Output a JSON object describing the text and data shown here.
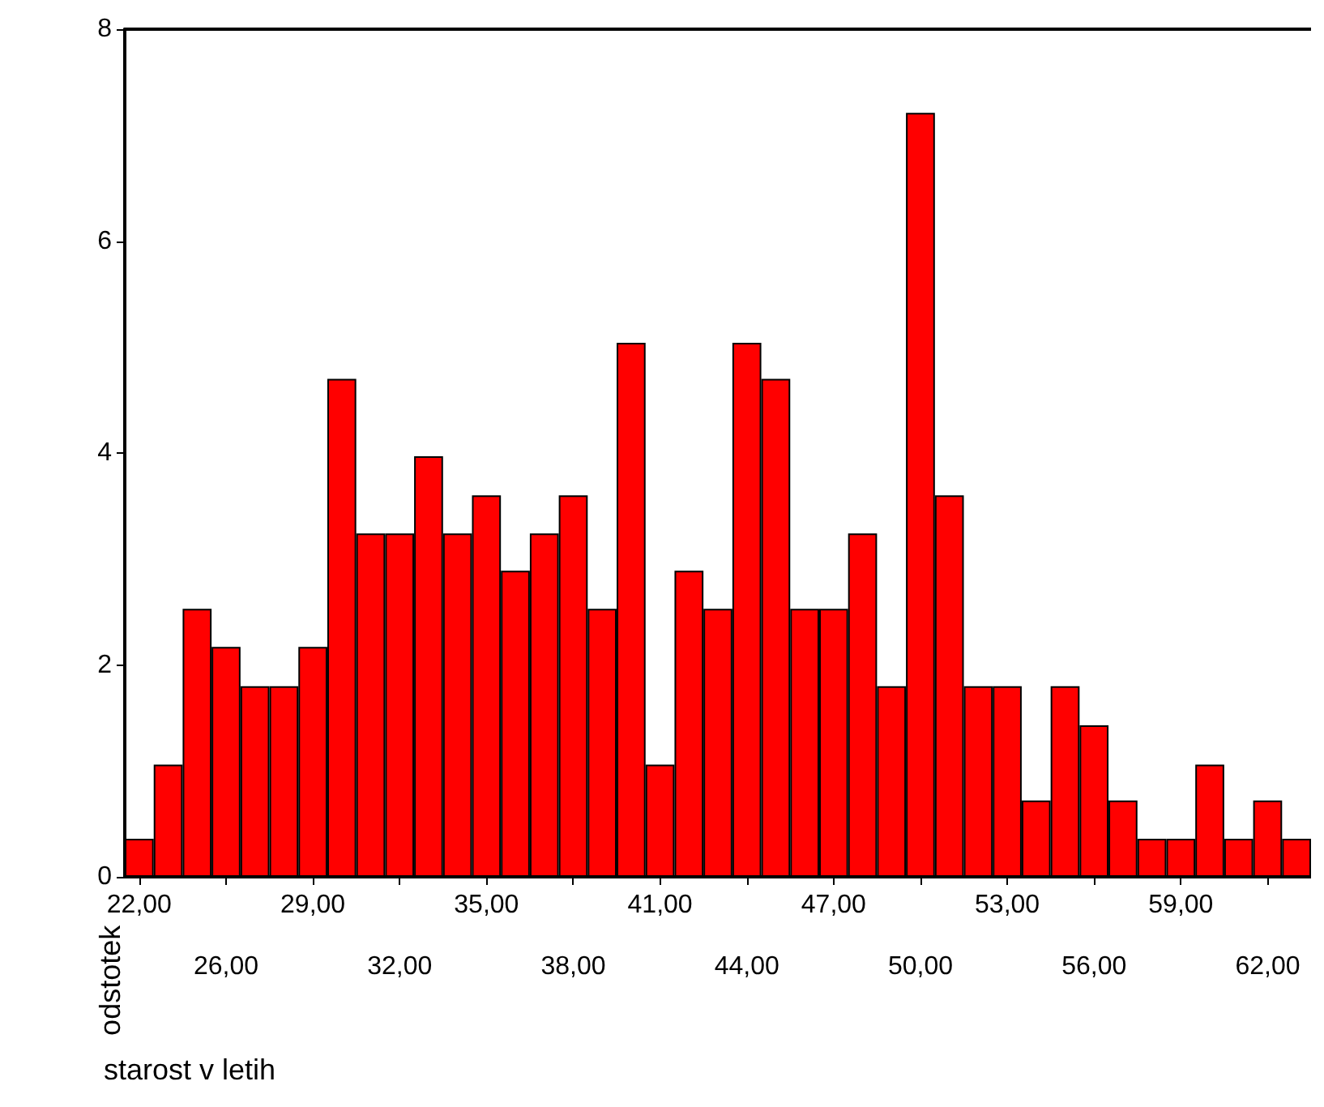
{
  "chart_data": {
    "type": "bar",
    "xlabel": "starost v letih",
    "ylabel": "odstotek",
    "categories": [
      "22,00",
      null,
      null,
      "26,00",
      null,
      null,
      "29,00",
      null,
      null,
      "32,00",
      null,
      null,
      "35,00",
      null,
      null,
      "38,00",
      null,
      null,
      "41,00",
      null,
      null,
      "44,00",
      null,
      null,
      "47,00",
      null,
      null,
      "50,00",
      null,
      null,
      "53,00",
      null,
      null,
      "56,00",
      null,
      null,
      "59,00",
      null,
      null,
      "62,00",
      null
    ],
    "values": [
      0.36,
      1.06,
      2.53,
      2.17,
      1.8,
      1.8,
      2.17,
      4.7,
      3.24,
      3.24,
      3.97,
      3.24,
      3.6,
      2.89,
      3.24,
      3.6,
      2.53,
      5.04,
      1.06,
      2.89,
      2.53,
      5.04,
      4.7,
      2.53,
      2.53,
      3.24,
      1.8,
      7.21,
      3.6,
      1.8,
      1.8,
      0.72,
      1.8,
      1.43,
      0.72,
      0.36,
      0.36,
      1.06,
      0.36,
      0.72,
      0.36
    ],
    "color": "#ff0000",
    "ylim": [
      0,
      8
    ],
    "yticks": [
      0,
      2,
      4,
      6,
      8
    ]
  }
}
